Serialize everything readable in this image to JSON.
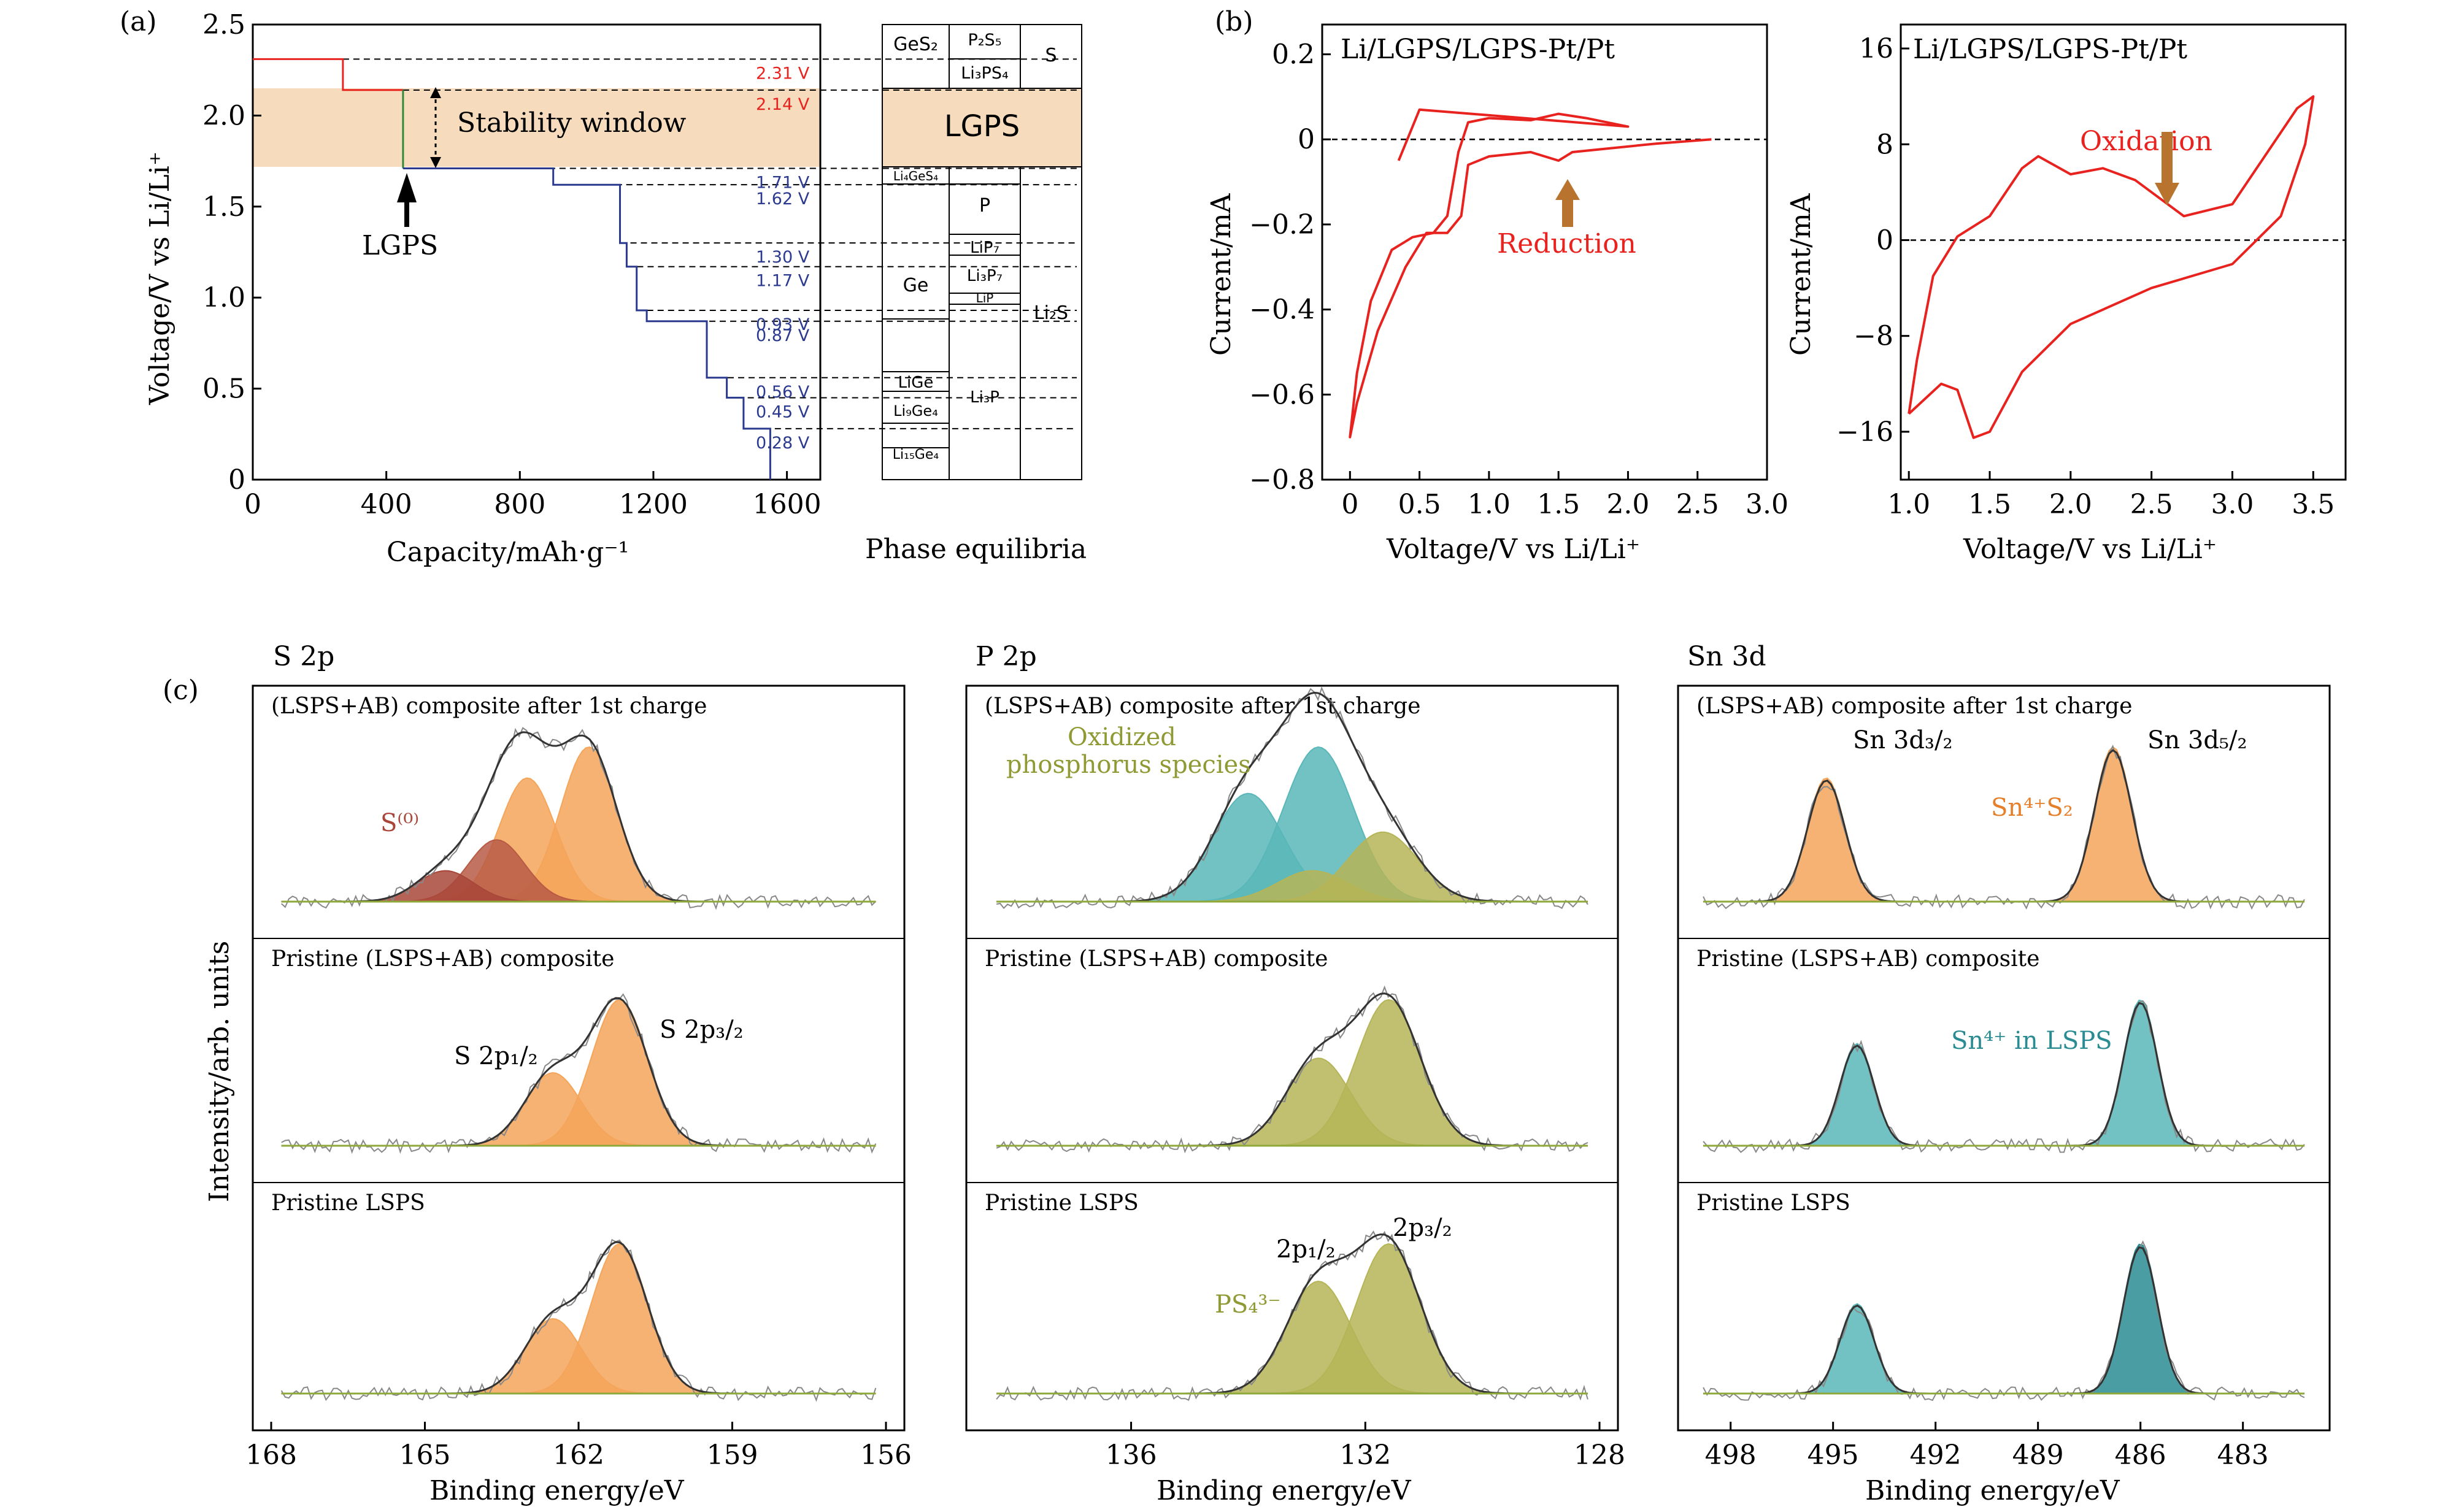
{
  "colors": {
    "red": "#e8231f",
    "blue": "#2b3a8f",
    "green": "#2e8b3a",
    "band": "#f6dcbc",
    "orange": "#f5a55a",
    "darkorange": "#e57f2a",
    "brown": "#a8463a",
    "teal": "#59b7b9",
    "darkteal": "#2a8c92",
    "olive": "#b5b557",
    "darkolive": "#8f9a34",
    "gray": "#555555",
    "brownArrow": "#b8742e"
  },
  "panelA": {
    "label": "(a)",
    "xlabel": "Capacity/mAh·g⁻¹",
    "ylabel": "Voltage/V vs Li/Li⁺",
    "xticks": [
      "0",
      "400",
      "800",
      "1200",
      "1600"
    ],
    "yticks": [
      "0",
      "0.5",
      "1.0",
      "1.5",
      "2.0",
      "2.5"
    ],
    "stability": "Stability window",
    "lgps_arrow": "LGPS",
    "voltage_labels": [
      "2.31 V",
      "2.14 V",
      "1.71 V",
      "1.62 V",
      "1.30 V",
      "1.17 V",
      "0.93 V",
      "0.87 V",
      "0.56 V",
      "0.45 V",
      "0.28 V"
    ],
    "phase_title": "Phase equilibria",
    "phases": {
      "GeS2": "GeS₂",
      "P2S5": "P₂S₅",
      "S": "S",
      "Li3PS4": "Li₃PS₄",
      "LGPS": "LGPS",
      "Li4GeS4": "Li₄GeS₄",
      "P": "P",
      "LiP7": "LiP₇",
      "Ge": "Ge",
      "Li3P7": "Li₃P₇",
      "LiP": "LiP",
      "Li2S": "Li₂S",
      "LiGe": "LiGe",
      "Li9Ge4": "Li₉Ge₄",
      "Li3P": "Li₃P",
      "Li15Ge4": "Li₁₅Ge₄"
    }
  },
  "panelB": {
    "label": "(b)",
    "left": {
      "title": "Li/LGPS/LGPS-Pt/Pt",
      "xlabel": "Voltage/V vs Li/Li⁺",
      "ylabel": "Current/mA",
      "xticks": [
        "0",
        "0.5",
        "1.0",
        "1.5",
        "2.0",
        "2.5",
        "3.0"
      ],
      "yticks": [
        "0.2",
        "0",
        "−0.2",
        "−0.4",
        "−0.6",
        "−0.8"
      ],
      "annotation": "Reduction"
    },
    "right": {
      "title": "Li/LGPS/LGPS-Pt/Pt",
      "xlabel": "Voltage/V vs Li/Li⁺",
      "ylabel": "Current/mA",
      "xticks": [
        "1.0",
        "1.5",
        "2.0",
        "2.5",
        "3.0",
        "3.5"
      ],
      "yticks": [
        "16",
        "8",
        "0",
        "−8",
        "−16"
      ],
      "annotation": "Oxidation"
    }
  },
  "panelC": {
    "label": "(c)",
    "ylabel": "Intensity/arb. units",
    "xlabel": "Binding energy/eV",
    "S": {
      "title": "S 2p",
      "xticks": [
        "168",
        "165",
        "162",
        "159",
        "156"
      ],
      "rows": [
        "(LSPS+AB) composite after 1st charge",
        "Pristine (LSPS+AB) composite",
        "Pristine LSPS"
      ],
      "s0": "S⁽⁰⁾",
      "p12": "S 2p₁/₂",
      "p32": "S 2p₃/₂"
    },
    "P": {
      "title": "P 2p",
      "xticks": [
        "136",
        "132",
        "128"
      ],
      "rows": [
        "(LSPS+AB) composite after 1st charge",
        "Pristine (LSPS+AB) composite",
        "Pristine LSPS"
      ],
      "oxidized1": "Oxidized",
      "oxidized2": "phosphorus species",
      "p12": "2p₁/₂",
      "p32": "2p₃/₂",
      "ps4": "PS₄³⁻"
    },
    "Sn": {
      "title": "Sn 3d",
      "xticks": [
        "498",
        "495",
        "492",
        "489",
        "486",
        "483"
      ],
      "rows": [
        "(LSPS+AB) composite after 1st charge",
        "Pristine (LSPS+AB) composite",
        "Pristine LSPS"
      ],
      "d32": "Sn 3d₃/₂",
      "d52": "Sn 3d₅/₂",
      "sn4s2": "Sn⁴⁺S₂",
      "sn4lsps": "Sn⁴⁺ in LSPS"
    }
  },
  "chart_data": [
    {
      "type": "line",
      "panel": "a",
      "xlabel": "Capacity/mAh·g⁻¹",
      "ylabel": "Voltage/V vs Li/Li⁺",
      "xlim": [
        0,
        1700
      ],
      "ylim": [
        0,
        2.5
      ],
      "series": [
        {
          "color": "red",
          "points": [
            [
              0,
              2.31
            ],
            [
              270,
              2.31
            ],
            [
              270,
              2.14
            ],
            [
              450,
              2.14
            ]
          ]
        },
        {
          "color": "green",
          "points": [
            [
              450,
              2.14
            ],
            [
              450,
              1.71
            ]
          ]
        },
        {
          "color": "blue",
          "points": [
            [
              450,
              1.71
            ],
            [
              900,
              1.71
            ],
            [
              900,
              1.62
            ],
            [
              1100,
              1.62
            ],
            [
              1100,
              1.3
            ],
            [
              1120,
              1.3
            ],
            [
              1120,
              1.17
            ],
            [
              1150,
              1.17
            ],
            [
              1150,
              0.93
            ],
            [
              1180,
              0.93
            ],
            [
              1180,
              0.87
            ],
            [
              1360,
              0.87
            ],
            [
              1360,
              0.56
            ],
            [
              1420,
              0.56
            ],
            [
              1420,
              0.45
            ],
            [
              1470,
              0.45
            ],
            [
              1470,
              0.28
            ],
            [
              1550,
              0.28
            ],
            [
              1550,
              0
            ]
          ]
        }
      ],
      "stability_window": [
        1.71,
        2.14
      ]
    },
    {
      "type": "line",
      "panel": "b-left",
      "xlabel": "Voltage/V vs Li/Li⁺",
      "ylabel": "Current/mA",
      "xlim": [
        -0.2,
        3.0
      ],
      "ylim": [
        -0.8,
        0.27
      ],
      "points": [
        [
          2.6,
          0.0
        ],
        [
          2.2,
          -0.01
        ],
        [
          1.9,
          -0.02
        ],
        [
          1.6,
          -0.03
        ],
        [
          1.5,
          -0.05
        ],
        [
          1.3,
          -0.03
        ],
        [
          1.0,
          -0.04
        ],
        [
          0.85,
          -0.06
        ],
        [
          0.8,
          -0.18
        ],
        [
          0.7,
          -0.22
        ],
        [
          0.55,
          -0.22
        ],
        [
          0.4,
          -0.3
        ],
        [
          0.2,
          -0.45
        ],
        [
          0.05,
          -0.62
        ],
        [
          0.0,
          -0.7
        ],
        [
          0.05,
          -0.55
        ],
        [
          0.15,
          -0.38
        ],
        [
          0.3,
          -0.26
        ],
        [
          0.45,
          -0.23
        ],
        [
          0.6,
          -0.22
        ],
        [
          0.7,
          -0.18
        ],
        [
          0.78,
          -0.03
        ],
        [
          0.85,
          0.04
        ],
        [
          1.0,
          0.05
        ],
        [
          1.3,
          0.045
        ],
        [
          1.5,
          0.06
        ],
        [
          1.7,
          0.05
        ],
        [
          2.0,
          0.03
        ],
        [
          0.5,
          0.07
        ],
        [
          0.35,
          -0.05
        ]
      ]
    },
    {
      "type": "line",
      "panel": "b-right",
      "xlabel": "Voltage/V vs Li/Li⁺",
      "ylabel": "Current/mA",
      "xlim": [
        0.95,
        3.7
      ],
      "ylim": [
        -20,
        18
      ],
      "points": [
        [
          1.0,
          -14.5
        ],
        [
          1.2,
          -12
        ],
        [
          1.3,
          -12.5
        ],
        [
          1.4,
          -16.5
        ],
        [
          1.5,
          -16
        ],
        [
          1.7,
          -11
        ],
        [
          2.0,
          -7
        ],
        [
          2.5,
          -4
        ],
        [
          3.0,
          -2
        ],
        [
          3.3,
          2
        ],
        [
          3.45,
          8
        ],
        [
          3.5,
          12
        ],
        [
          3.4,
          11
        ],
        [
          3.2,
          7
        ],
        [
          3.0,
          3
        ],
        [
          2.7,
          2
        ],
        [
          2.4,
          5
        ],
        [
          2.2,
          6
        ],
        [
          2.0,
          5.5
        ],
        [
          1.8,
          7
        ],
        [
          1.7,
          6
        ],
        [
          1.5,
          2
        ],
        [
          1.3,
          0.3
        ],
        [
          1.15,
          -3
        ],
        [
          1.05,
          -10
        ],
        [
          1.0,
          -14.5
        ]
      ]
    },
    {
      "type": "line",
      "panel": "c-S2p",
      "xlabel": "Binding energy/eV",
      "xlim": [
        168,
        156
      ],
      "rows": [
        {
          "name": "(LSPS+AB) composite after 1st charge",
          "peaks": [
            {
              "center": 161.8,
              "height": 1.0
            },
            {
              "center": 163.0,
              "height": 0.8
            },
            {
              "center": 163.6,
              "height": 0.4
            },
            {
              "center": 164.6,
              "height": 0.2
            }
          ]
        },
        {
          "name": "Pristine (LSPS+AB) composite",
          "peaks": [
            {
              "center": 161.2,
              "height": 1.0
            },
            {
              "center": 162.5,
              "height": 0.5
            }
          ]
        },
        {
          "name": "Pristine LSPS",
          "peaks": [
            {
              "center": 161.2,
              "height": 1.0
            },
            {
              "center": 162.5,
              "height": 0.5
            }
          ]
        }
      ]
    },
    {
      "type": "line",
      "panel": "c-P2p",
      "xlabel": "Binding energy/eV",
      "xlim": [
        138.5,
        128
      ],
      "rows": [
        {
          "name": "(LSPS+AB) composite after 1st charge",
          "peaks": [
            {
              "center": 132.8,
              "height": 1.0
            },
            {
              "center": 134.0,
              "height": 0.7
            },
            {
              "center": 131.7,
              "height": 0.45
            },
            {
              "center": 132.9,
              "height": 0.2
            }
          ]
        },
        {
          "name": "Pristine (LSPS+AB) composite",
          "peaks": [
            {
              "center": 131.6,
              "height": 1.0
            },
            {
              "center": 132.8,
              "height": 0.6
            }
          ]
        },
        {
          "name": "Pristine LSPS",
          "peaks": [
            {
              "center": 131.6,
              "height": 1.0
            },
            {
              "center": 132.8,
              "height": 0.75
            }
          ]
        }
      ]
    },
    {
      "type": "line",
      "panel": "c-Sn3d",
      "xlabel": "Binding energy/eV",
      "xlim": [
        499,
        481
      ],
      "rows": [
        {
          "name": "(LSPS+AB) composite after 1st charge",
          "peaks": [
            {
              "center": 495.2,
              "height": 0.8
            },
            {
              "center": 486.8,
              "height": 1.0
            }
          ]
        },
        {
          "name": "Pristine (LSPS+AB) composite",
          "peaks": [
            {
              "center": 494.3,
              "height": 0.7
            },
            {
              "center": 486.0,
              "height": 1.0
            }
          ]
        },
        {
          "name": "Pristine LSPS",
          "peaks": [
            {
              "center": 494.3,
              "height": 0.6
            },
            {
              "center": 486.0,
              "height": 1.0
            }
          ]
        }
      ]
    }
  ]
}
